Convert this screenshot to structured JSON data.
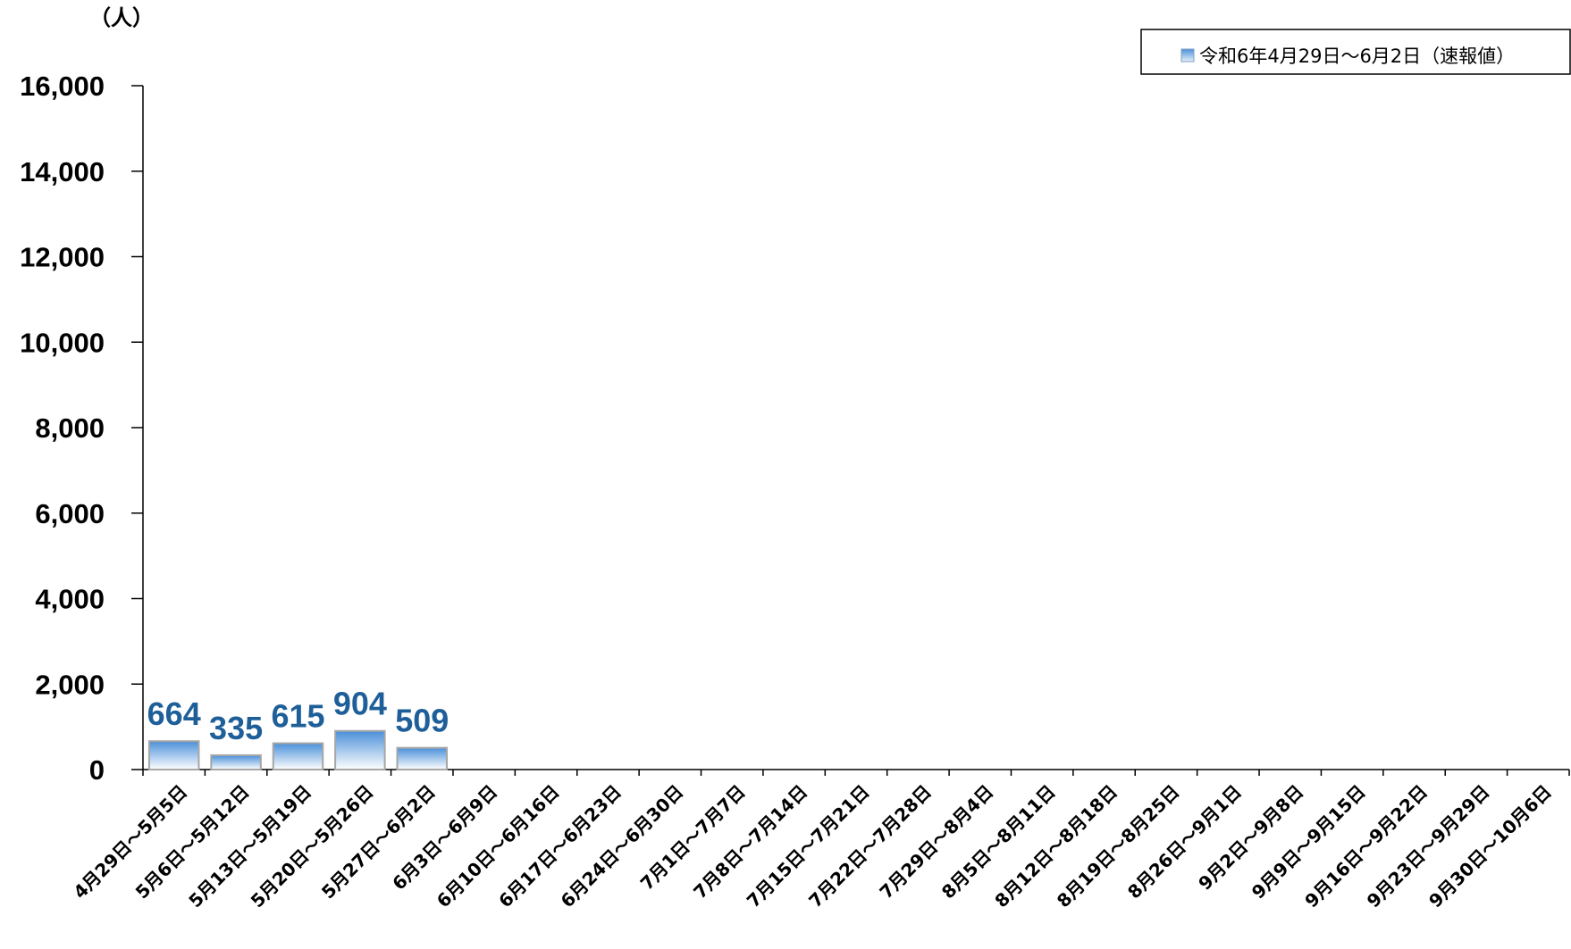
{
  "chart_data": {
    "type": "bar",
    "unit_label": "（人）",
    "ylim": [
      0,
      16000
    ],
    "y_ticks": [
      "0",
      "2,000",
      "4,000",
      "6,000",
      "8,000",
      "10,000",
      "12,000",
      "14,000",
      "16,000"
    ],
    "y_tick_values": [
      0,
      2000,
      4000,
      6000,
      8000,
      10000,
      12000,
      14000,
      16000
    ],
    "categories": [
      "4月29日～5月5日",
      "5月6日～5月12日",
      "5月13日～5月19日",
      "5月20日～5月26日",
      "5月27日～6月2日",
      "6月3日～6月9日",
      "6月10日～6月16日",
      "6月17日～6月23日",
      "6月24日～6月30日",
      "7月1日～7月7日",
      "7月8日～7月14日",
      "7月15日～7月21日",
      "7月22日～7月28日",
      "7月29日～8月4日",
      "8月5日～8月11日",
      "8月12日～8月18日",
      "8月19日～8月25日",
      "8月26日～9月1日",
      "9月2日～9月8日",
      "9月9日～9月15日",
      "9月16日～9月22日",
      "9月23日～9月29日",
      "9月30日～10月6日"
    ],
    "series": [
      {
        "name": "令和6年4月29日～6月2日（速報値）",
        "values": [
          664,
          335,
          615,
          904,
          509,
          null,
          null,
          null,
          null,
          null,
          null,
          null,
          null,
          null,
          null,
          null,
          null,
          null,
          null,
          null,
          null,
          null,
          null
        ],
        "data_labels": [
          "664",
          "335",
          "615",
          "904",
          "509"
        ]
      }
    ],
    "legend_position": "top-right",
    "grid": false,
    "colors": {
      "bar_top": "#4a90d9",
      "bar_bottom": "#ffffff",
      "bar_stroke": "#a6a6a6",
      "data_label": "#1f5f99",
      "axis": "#000000"
    }
  }
}
